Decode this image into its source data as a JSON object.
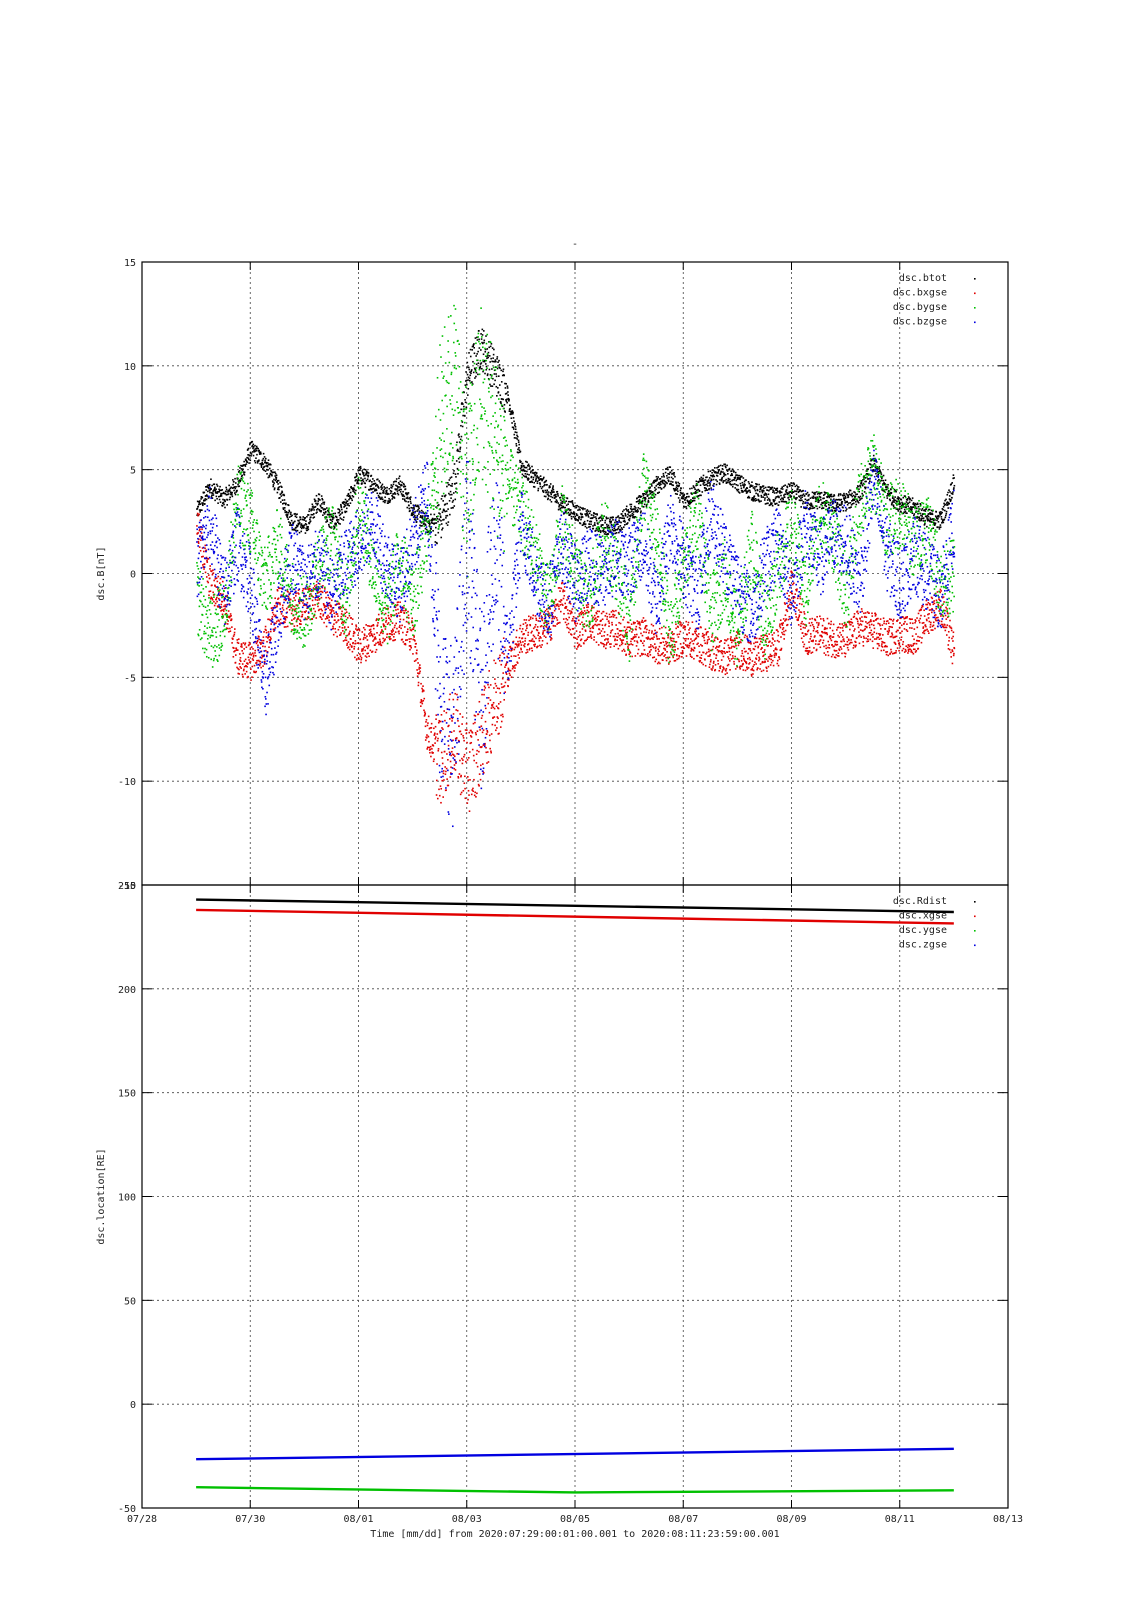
{
  "chart_data": [
    {
      "type": "scatter",
      "title": "-",
      "ylabel": "dsc.B[nT]",
      "ylim": [
        -15,
        15
      ],
      "yticks": [
        15,
        10,
        5,
        0,
        -5,
        -10,
        -15
      ],
      "grid": true,
      "legend_position": "top-right",
      "xlim": [
        "07/28",
        "08/13"
      ],
      "series": [
        {
          "name": "dsc.btot",
          "color": "#000000",
          "x": [
            "07/29 00:00",
            "07/29 06:00",
            "07/29 12:00",
            "07/29 18:00",
            "07/30 00:00",
            "07/30 06:00",
            "07/30 12:00",
            "07/30 18:00",
            "07/31 00:00",
            "07/31 06:00",
            "07/31 12:00",
            "07/31 18:00",
            "08/01 00:00",
            "08/01 06:00",
            "08/01 12:00",
            "08/01 18:00",
            "08/02 00:00",
            "08/02 06:00",
            "08/02 12:00",
            "08/02 18:00",
            "08/03 00:00",
            "08/03 06:00",
            "08/03 12:00",
            "08/03 18:00",
            "08/04 00:00",
            "08/04 06:00",
            "08/04 12:00",
            "08/04 18:00",
            "08/05 00:00",
            "08/05 06:00",
            "08/05 12:00",
            "08/05 18:00",
            "08/06 00:00",
            "08/06 06:00",
            "08/06 12:00",
            "08/06 18:00",
            "08/07 00:00",
            "08/07 06:00",
            "08/07 12:00",
            "08/07 18:00",
            "08/08 00:00",
            "08/08 06:00",
            "08/08 12:00",
            "08/08 18:00",
            "08/09 00:00",
            "08/09 06:00",
            "08/09 12:00",
            "08/09 18:00",
            "08/10 00:00",
            "08/10 06:00",
            "08/10 12:00",
            "08/10 18:00",
            "08/11 00:00",
            "08/11 06:00",
            "08/11 12:00",
            "08/11 18:00",
            "08/11 23:59"
          ],
          "y": [
            3.0,
            4.2,
            3.6,
            4.4,
            6.0,
            5.4,
            4.2,
            2.6,
            2.3,
            3.6,
            2.4,
            3.2,
            4.8,
            4.4,
            3.8,
            4.3,
            3.1,
            2.4,
            2.6,
            4.2,
            9.5,
            11.0,
            9.8,
            8.6,
            5.2,
            4.6,
            4.0,
            3.4,
            3.0,
            2.6,
            2.4,
            2.3,
            3.0,
            3.5,
            4.3,
            4.8,
            3.5,
            4.1,
            4.6,
            4.9,
            4.4,
            4.0,
            3.8,
            3.7,
            4.0,
            3.5,
            3.6,
            3.4,
            3.5,
            3.9,
            5.3,
            4.0,
            3.4,
            3.2,
            2.7,
            2.6,
            4.5
          ]
        },
        {
          "name": "dsc.bxgse",
          "color": "#e00000",
          "x": [
            "07/29 00:00",
            "07/29 06:00",
            "07/29 12:00",
            "07/29 18:00",
            "07/30 00:00",
            "07/30 06:00",
            "07/30 12:00",
            "07/30 18:00",
            "07/31 00:00",
            "07/31 06:00",
            "07/31 12:00",
            "07/31 18:00",
            "08/01 00:00",
            "08/01 06:00",
            "08/01 12:00",
            "08/01 18:00",
            "08/02 00:00",
            "08/02 06:00",
            "08/02 12:00",
            "08/02 18:00",
            "08/03 00:00",
            "08/03 06:00",
            "08/03 12:00",
            "08/03 18:00",
            "08/04 00:00",
            "08/04 06:00",
            "08/04 12:00",
            "08/04 18:00",
            "08/05 00:00",
            "08/05 06:00",
            "08/05 12:00",
            "08/05 18:00",
            "08/06 00:00",
            "08/06 06:00",
            "08/06 12:00",
            "08/06 18:00",
            "08/07 00:00",
            "08/07 06:00",
            "08/07 12:00",
            "08/07 18:00",
            "08/08 00:00",
            "08/08 06:00",
            "08/08 12:00",
            "08/08 18:00",
            "08/09 00:00",
            "08/09 06:00",
            "08/09 12:00",
            "08/09 18:00",
            "08/10 00:00",
            "08/10 06:00",
            "08/10 12:00",
            "08/10 18:00",
            "08/11 00:00",
            "08/11 06:00",
            "08/11 12:00",
            "08/11 18:00",
            "08/11 23:59"
          ],
          "y": [
            2.5,
            -0.5,
            -1.2,
            -4.0,
            -4.2,
            -3.5,
            -1.5,
            -1.8,
            -1.5,
            -1.2,
            -2.0,
            -2.5,
            -3.5,
            -3.0,
            -2.4,
            -2.2,
            -3.0,
            -7.5,
            -9.0,
            -7.5,
            -9.5,
            -8.0,
            -6.0,
            -4.5,
            -3.0,
            -2.8,
            -2.5,
            -1.2,
            -2.8,
            -2.2,
            -2.7,
            -2.6,
            -3.2,
            -3.0,
            -3.4,
            -3.5,
            -3.0,
            -3.3,
            -3.7,
            -4.0,
            -3.6,
            -4.0,
            -3.8,
            -3.5,
            -0.5,
            -3.0,
            -2.9,
            -3.1,
            -3.2,
            -2.5,
            -2.7,
            -3.1,
            -2.8,
            -3.0,
            -2.0,
            -1.5,
            -3.9
          ]
        },
        {
          "name": "dsc.bygse",
          "color": "#00c000",
          "x": [
            "07/29 00:00",
            "07/29 06:00",
            "07/29 12:00",
            "07/29 18:00",
            "07/30 00:00",
            "07/30 06:00",
            "07/30 12:00",
            "07/30 18:00",
            "07/31 00:00",
            "07/31 06:00",
            "07/31 12:00",
            "07/31 18:00",
            "08/01 00:00",
            "08/01 06:00",
            "08/01 12:00",
            "08/01 18:00",
            "08/02 00:00",
            "08/02 06:00",
            "08/02 12:00",
            "08/02 18:00",
            "08/03 00:00",
            "08/03 06:00",
            "08/03 12:00",
            "08/03 18:00",
            "08/04 00:00",
            "08/04 06:00",
            "08/04 12:00",
            "08/04 18:00",
            "08/05 00:00",
            "08/05 06:00",
            "08/05 12:00",
            "08/05 18:00",
            "08/06 00:00",
            "08/06 06:00",
            "08/06 12:00",
            "08/06 18:00",
            "08/07 00:00",
            "08/07 06:00",
            "08/07 12:00",
            "08/07 18:00",
            "08/08 00:00",
            "08/08 06:00",
            "08/08 12:00",
            "08/08 18:00",
            "08/09 00:00",
            "08/09 06:00",
            "08/09 12:00",
            "08/09 18:00",
            "08/10 00:00",
            "08/10 06:00",
            "08/10 12:00",
            "08/10 18:00",
            "08/11 00:00",
            "08/11 06:00",
            "08/11 12:00",
            "08/11 18:00",
            "08/11 23:59"
          ],
          "y": [
            -1.0,
            -3.0,
            -2.0,
            3.5,
            2.5,
            -0.5,
            1.5,
            -1.0,
            -2.0,
            0.5,
            1.8,
            -1.5,
            3.5,
            0.5,
            -2.0,
            1.0,
            -1.5,
            2.0,
            7.0,
            9.5,
            4.0,
            9.0,
            6.5,
            4.5,
            3.0,
            1.0,
            -1.5,
            2.5,
            0.0,
            -1.5,
            2.0,
            0.5,
            -2.5,
            4.5,
            1.5,
            -3.0,
            0.5,
            3.0,
            -2.0,
            0.0,
            -3.0,
            1.5,
            -2.5,
            0.5,
            2.5,
            -1.0,
            3.0,
            2.0,
            -1.0,
            3.5,
            5.0,
            2.5,
            3.0,
            1.5,
            2.5,
            -0.5,
            0.0
          ]
        },
        {
          "name": "dsc.bzgse",
          "color": "#0000e0",
          "x": [
            "07/29 00:00",
            "07/29 06:00",
            "07/29 12:00",
            "07/29 18:00",
            "07/30 00:00",
            "07/30 06:00",
            "07/30 12:00",
            "07/30 18:00",
            "07/31 00:00",
            "07/31 06:00",
            "07/31 12:00",
            "07/31 18:00",
            "08/01 00:00",
            "08/01 06:00",
            "08/01 12:00",
            "08/01 18:00",
            "08/02 00:00",
            "08/02 06:00",
            "08/02 12:00",
            "08/02 18:00",
            "08/03 00:00",
            "08/03 06:00",
            "08/03 12:00",
            "08/03 18:00",
            "08/04 00:00",
            "08/04 06:00",
            "08/04 12:00",
            "08/04 18:00",
            "08/05 00:00",
            "08/05 06:00",
            "08/05 12:00",
            "08/05 18:00",
            "08/06 00:00",
            "08/06 06:00",
            "08/06 12:00",
            "08/06 18:00",
            "08/07 00:00",
            "08/07 06:00",
            "08/07 12:00",
            "08/07 18:00",
            "08/08 00:00",
            "08/08 06:00",
            "08/08 12:00",
            "08/08 18:00",
            "08/09 00:00",
            "08/09 06:00",
            "08/09 12:00",
            "08/09 18:00",
            "08/10 00:00",
            "08/10 06:00",
            "08/10 12:00",
            "08/10 18:00",
            "08/11 00:00",
            "08/11 06:00",
            "08/11 12:00",
            "08/11 18:00",
            "08/11 23:59"
          ],
          "y": [
            0.5,
            2.5,
            -1.0,
            1.5,
            -0.5,
            -5.5,
            -2.0,
            1.0,
            -0.5,
            0.5,
            -1.0,
            0.5,
            1.5,
            2.5,
            0.5,
            -0.5,
            1.5,
            4.0,
            -6.0,
            -8.0,
            2.0,
            -6.5,
            1.5,
            -4.0,
            2.5,
            0.0,
            -1.5,
            1.5,
            -0.5,
            0.5,
            0.0,
            1.0,
            0.5,
            1.5,
            -1.5,
            2.5,
            0.5,
            -1.0,
            3.0,
            1.0,
            -0.5,
            -2.0,
            0.5,
            1.5,
            -1.0,
            2.5,
            0.5,
            2.0,
            1.5,
            -0.5,
            4.5,
            1.0,
            -0.5,
            1.0,
            0.0,
            -1.0,
            2.5
          ]
        }
      ]
    },
    {
      "type": "scatter",
      "ylabel": "dsc.location[RE]",
      "xlabel": "Time [mm/dd]  from 2020:07:29:00:01:00.001  to  2020:08:11:23:59:00.001",
      "ylim": [
        -50,
        250
      ],
      "yticks": [
        250,
        200,
        150,
        100,
        50,
        0,
        -50
      ],
      "xlim": [
        "07/28",
        "08/13"
      ],
      "xticks": [
        "07/28",
        "07/30",
        "08/01",
        "08/03",
        "08/05",
        "08/07",
        "08/09",
        "08/11",
        "08/13"
      ],
      "grid": true,
      "legend_position": "top-right",
      "series": [
        {
          "name": "dsc.Rdist",
          "color": "#000000",
          "x": [
            "07/29 00:00",
            "08/11 23:59"
          ],
          "y": [
            243,
            237
          ]
        },
        {
          "name": "dsc.xgse",
          "color": "#e00000",
          "x": [
            "07/29 00:00",
            "08/11 23:59"
          ],
          "y": [
            238,
            231.5
          ]
        },
        {
          "name": "dsc.ygse",
          "color": "#00c000",
          "x": [
            "07/29 00:00",
            "08/05 00:00",
            "08/11 23:59"
          ],
          "y": [
            -40,
            -42.5,
            -41.5
          ]
        },
        {
          "name": "dsc.zgse",
          "color": "#0000e0",
          "x": [
            "07/29 00:00",
            "08/11 23:59"
          ],
          "y": [
            -26.5,
            -21.5
          ]
        }
      ]
    }
  ]
}
